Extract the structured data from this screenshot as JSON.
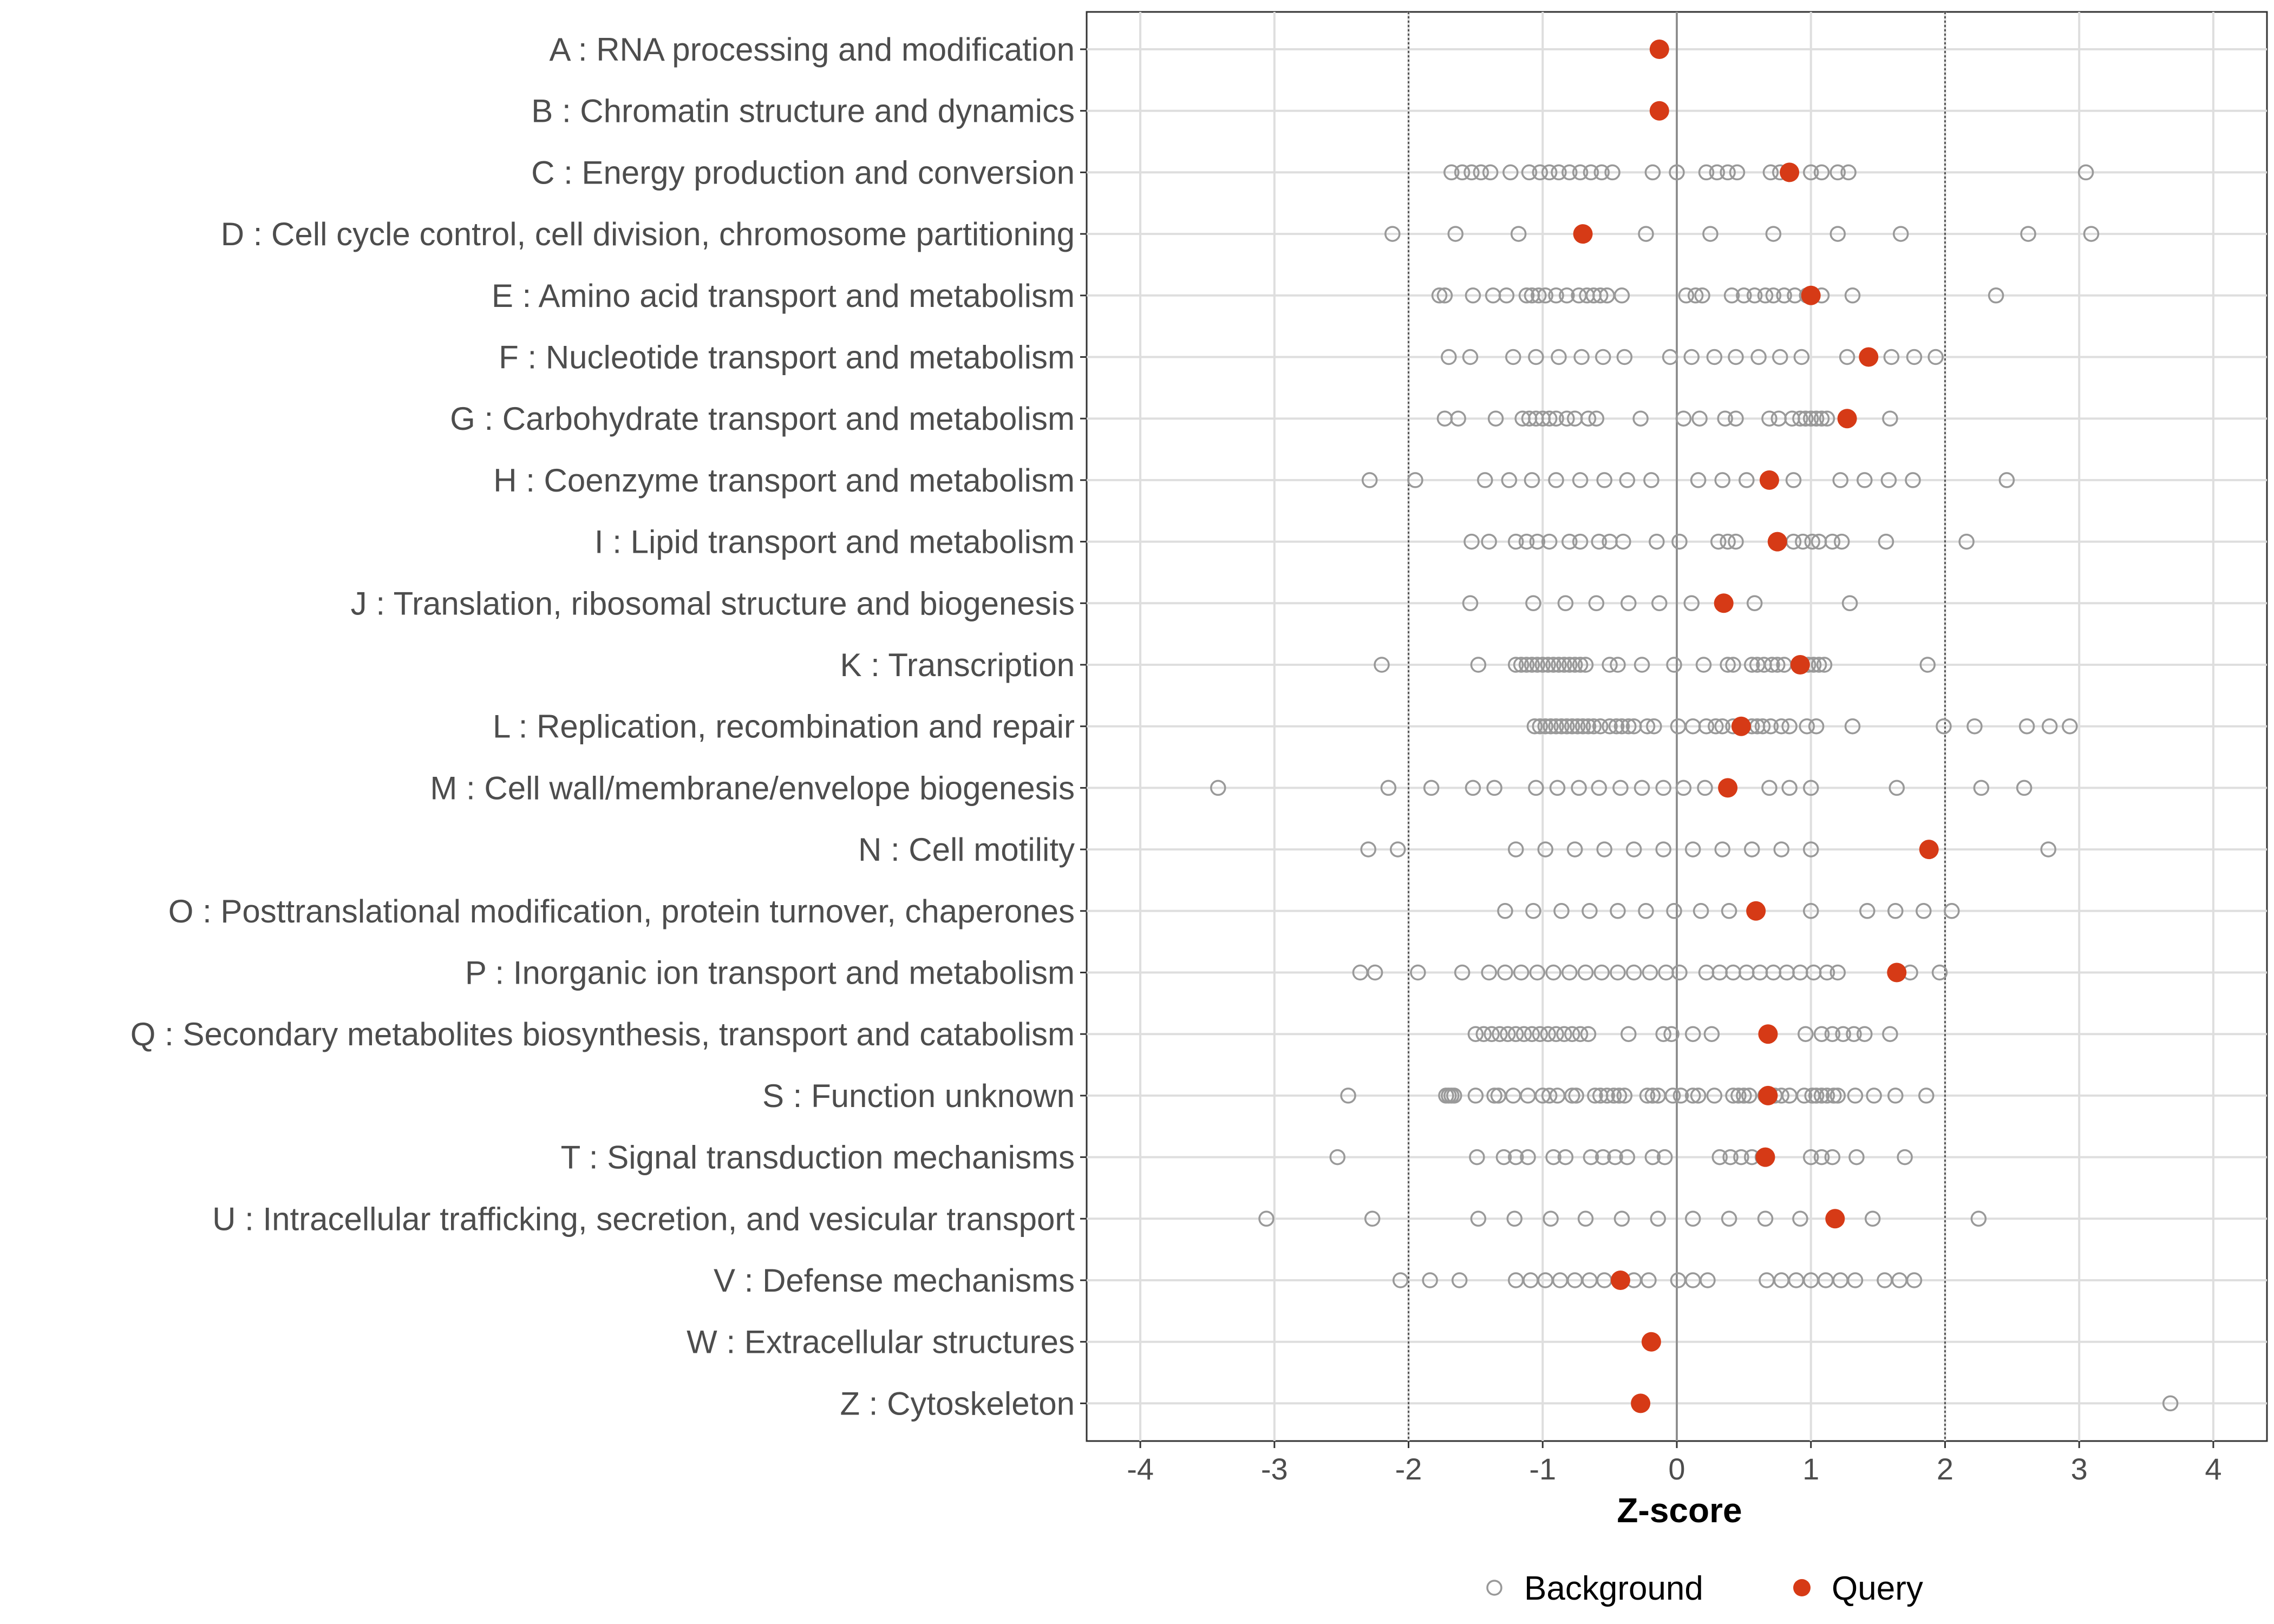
{
  "chart_data": {
    "type": "scatter",
    "xlabel": "Z-score",
    "ylabel": "",
    "xlim": [
      -4.4,
      4.4
    ],
    "xticks": [
      -4,
      -3,
      -2,
      -1,
      0,
      1,
      2,
      3,
      4
    ],
    "xtick_labels": [
      "-4",
      "-3",
      "-2",
      "-1",
      "0",
      "1",
      "2",
      "3",
      "4"
    ],
    "reference_lines": [
      -2,
      0,
      2
    ],
    "grid": true,
    "legend": {
      "position": "bottom",
      "entries": [
        {
          "name": "Background",
          "style": "open-circle",
          "color": "#999999"
        },
        {
          "name": "Query",
          "style": "filled-circle",
          "color": "#d63a16"
        }
      ]
    },
    "categories": [
      "A : RNA processing and modification",
      "B : Chromatin structure and dynamics",
      "C : Energy production and conversion",
      "D : Cell cycle control, cell division, chromosome partitioning",
      "E : Amino acid transport and metabolism",
      "F : Nucleotide transport and metabolism",
      "G : Carbohydrate transport and metabolism",
      "H : Coenzyme transport and metabolism",
      "I : Lipid transport and metabolism",
      "J : Translation, ribosomal structure and biogenesis",
      "K : Transcription",
      "L : Replication, recombination and repair",
      "M : Cell wall/membrane/envelope biogenesis",
      "N : Cell motility",
      "O : Posttranslational modification, protein turnover, chaperones",
      "P : Inorganic ion transport and metabolism",
      "Q : Secondary metabolites biosynthesis, transport and catabolism",
      "S : Function unknown",
      "T : Signal transduction mechanisms",
      "U : Intracellular trafficking, secretion, and vesicular transport",
      "V : Defense mechanisms",
      "W : Extracellular structures",
      "Z : Cytoskeleton"
    ],
    "series": [
      {
        "name": "Query",
        "values": [
          -0.13,
          -0.13,
          0.84,
          -0.7,
          1.0,
          1.43,
          1.27,
          0.69,
          0.75,
          0.35,
          0.92,
          0.48,
          0.38,
          1.88,
          0.59,
          1.64,
          0.68,
          0.68,
          0.66,
          1.18,
          -0.42,
          -0.19,
          -0.27
        ]
      },
      {
        "name": "Background",
        "values": [
          [],
          [],
          [
            -1.68,
            -1.6,
            -1.53,
            -1.46,
            -1.39,
            -1.24,
            -1.1,
            -1.02,
            -0.95,
            -0.88,
            -0.8,
            -0.72,
            -0.64,
            -0.56,
            -0.48,
            -0.18,
            0.0,
            0.22,
            0.3,
            0.38,
            0.45,
            0.7,
            0.77,
            1.0,
            1.08,
            1.2,
            1.28,
            3.05
          ],
          [
            -2.12,
            -1.65,
            -1.18,
            -0.23,
            0.25,
            0.72,
            1.2,
            1.67,
            2.62,
            3.09
          ],
          [
            -1.77,
            -1.73,
            -1.52,
            -1.37,
            -1.27,
            -1.12,
            -1.08,
            -1.03,
            -0.98,
            -0.9,
            -0.82,
            -0.73,
            -0.67,
            -0.62,
            -0.57,
            -0.52,
            -0.41,
            0.07,
            0.14,
            0.19,
            0.41,
            0.5,
            0.58,
            0.66,
            0.72,
            0.8,
            0.88,
            0.97,
            1.08,
            1.31,
            2.38
          ],
          [
            -1.7,
            -1.54,
            -1.22,
            -1.05,
            -0.88,
            -0.71,
            -0.55,
            -0.39,
            -0.05,
            0.11,
            0.28,
            0.44,
            0.61,
            0.77,
            0.93,
            1.27,
            1.6,
            1.77,
            1.93
          ],
          [
            -1.73,
            -1.63,
            -1.35,
            -1.15,
            -1.1,
            -1.05,
            -1.0,
            -0.95,
            -0.9,
            -0.82,
            -0.76,
            -0.66,
            -0.6,
            -0.27,
            0.05,
            0.17,
            0.36,
            0.44,
            0.69,
            0.76,
            0.86,
            0.92,
            0.96,
            1.0,
            1.04,
            1.08,
            1.12,
            1.59
          ],
          [
            -2.29,
            -1.95,
            -1.43,
            -1.25,
            -1.08,
            -0.9,
            -0.72,
            -0.54,
            -0.37,
            -0.19,
            0.16,
            0.34,
            0.52,
            0.87,
            1.22,
            1.4,
            1.58,
            1.76,
            2.46
          ],
          [
            -1.53,
            -1.4,
            -1.2,
            -1.12,
            -1.04,
            -0.95,
            -0.8,
            -0.72,
            -0.58,
            -0.5,
            -0.4,
            -0.15,
            0.02,
            0.31,
            0.38,
            0.44,
            0.87,
            0.94,
            1.01,
            1.06,
            1.16,
            1.23,
            1.56,
            2.16
          ],
          [
            -1.54,
            -1.07,
            -0.83,
            -0.6,
            -0.36,
            -0.13,
            0.11,
            0.58,
            1.29
          ],
          [
            -2.2,
            -1.48,
            -1.2,
            -1.16,
            -1.12,
            -1.08,
            -1.04,
            -1.0,
            -0.96,
            -0.92,
            -0.88,
            -0.84,
            -0.8,
            -0.76,
            -0.72,
            -0.68,
            -0.5,
            -0.44,
            -0.26,
            -0.02,
            0.2,
            0.38,
            0.42,
            0.56,
            0.6,
            0.65,
            0.71,
            0.75,
            0.8,
            0.98,
            1.02,
            1.06,
            1.1,
            1.87
          ],
          [
            -1.06,
            -1.02,
            -0.98,
            -0.94,
            -0.9,
            -0.86,
            -0.82,
            -0.78,
            -0.74,
            -0.7,
            -0.66,
            -0.62,
            -0.57,
            -0.5,
            -0.45,
            -0.41,
            -0.36,
            -0.32,
            -0.22,
            -0.17,
            0.01,
            0.12,
            0.22,
            0.29,
            0.34,
            0.42,
            0.56,
            0.6,
            0.64,
            0.7,
            0.78,
            0.84,
            0.97,
            1.04,
            1.31,
            1.99,
            2.22,
            2.61,
            2.78,
            2.93
          ],
          [
            -3.42,
            -2.15,
            -1.83,
            -1.52,
            -1.36,
            -1.05,
            -0.89,
            -0.73,
            -0.58,
            -0.42,
            -0.26,
            -0.1,
            0.05,
            0.21,
            0.69,
            0.84,
            1.0,
            1.64,
            2.27,
            2.59
          ],
          [
            -2.3,
            -2.08,
            -1.2,
            -0.98,
            -0.76,
            -0.54,
            -0.32,
            -0.1,
            0.12,
            0.34,
            0.56,
            0.78,
            1.0,
            2.77
          ],
          [
            -1.28,
            -1.07,
            -0.86,
            -0.65,
            -0.44,
            -0.23,
            -0.02,
            0.18,
            0.39,
            1.0,
            1.42,
            1.63,
            1.84,
            2.05
          ],
          [
            -2.36,
            -2.25,
            -1.93,
            -1.6,
            -1.4,
            -1.28,
            -1.16,
            -1.04,
            -0.92,
            -0.8,
            -0.68,
            -0.56,
            -0.44,
            -0.32,
            -0.2,
            -0.08,
            0.02,
            0.22,
            0.32,
            0.42,
            0.52,
            0.62,
            0.72,
            0.82,
            0.92,
            1.02,
            1.12,
            1.2,
            1.74,
            1.96
          ],
          [
            -1.5,
            -1.44,
            -1.38,
            -1.32,
            -1.26,
            -1.2,
            -1.14,
            -1.08,
            -1.02,
            -0.96,
            -0.9,
            -0.84,
            -0.78,
            -0.72,
            -0.66,
            -0.36,
            -0.1,
            -0.04,
            0.12,
            0.26,
            0.96,
            1.08,
            1.16,
            1.24,
            1.32,
            1.4,
            1.59
          ],
          [
            -2.45,
            -1.72,
            -1.7,
            -1.68,
            -1.66,
            -1.5,
            -1.36,
            -1.33,
            -1.22,
            -1.11,
            -1.0,
            -0.95,
            -0.89,
            -0.78,
            -0.75,
            -0.61,
            -0.57,
            -0.52,
            -0.47,
            -0.43,
            -0.39,
            -0.22,
            -0.18,
            -0.14,
            -0.03,
            0.03,
            0.12,
            0.16,
            0.28,
            0.42,
            0.46,
            0.5,
            0.54,
            0.66,
            0.73,
            0.78,
            0.84,
            0.95,
            1.01,
            1.04,
            1.08,
            1.12,
            1.17,
            1.2,
            1.33,
            1.47,
            1.63,
            1.86
          ],
          [
            -2.53,
            -1.49,
            -1.29,
            -1.2,
            -1.11,
            -0.92,
            -0.83,
            -0.64,
            -0.55,
            -0.46,
            -0.37,
            -0.18,
            -0.09,
            0.32,
            0.4,
            0.48,
            0.56,
            0.64,
            1.0,
            1.08,
            1.16,
            1.34,
            1.7
          ],
          [
            -3.06,
            -2.27,
            -1.48,
            -1.21,
            -0.94,
            -0.68,
            -0.41,
            -0.14,
            0.12,
            0.39,
            0.66,
            0.92,
            1.46,
            2.25
          ],
          [
            -2.06,
            -1.84,
            -1.62,
            -1.2,
            -1.09,
            -0.98,
            -0.87,
            -0.76,
            -0.65,
            -0.54,
            -0.43,
            -0.32,
            -0.21,
            0.01,
            0.12,
            0.23,
            0.67,
            0.78,
            0.89,
            1.0,
            1.11,
            1.22,
            1.33,
            1.55,
            1.66,
            1.77
          ],
          [],
          [
            3.68
          ]
        ]
      }
    ]
  }
}
